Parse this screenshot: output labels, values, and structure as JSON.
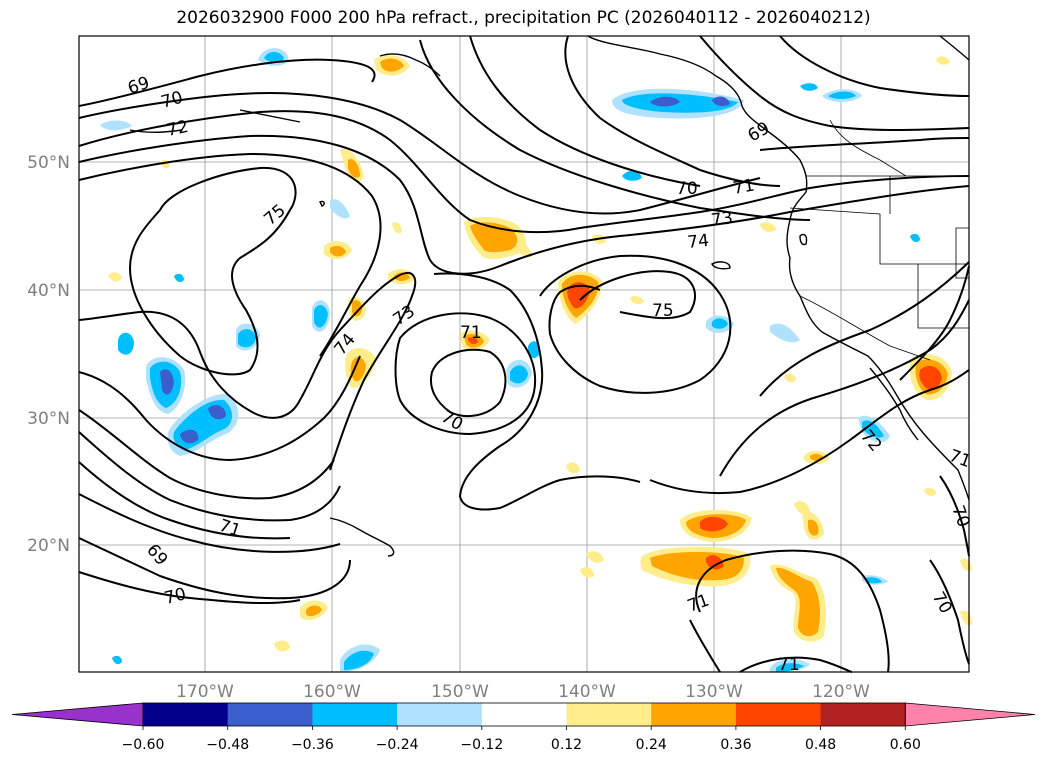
{
  "title": "2026032900 F000 200 hPa refract., precipitation PC (2026040112 - 2026040212)",
  "lat_labels": [
    "50°N",
    "40°N",
    "30°N",
    "20°N"
  ],
  "lon_labels": [
    "170°W",
    "160°W",
    "150°W",
    "140°W",
    "130°W",
    "120°W"
  ],
  "contour_labels": [
    "69",
    "70",
    "72",
    "75",
    "74",
    "73",
    "71",
    "70",
    "75",
    "70",
    "71",
    "73",
    "74",
    "69",
    "71",
    "69",
    "70",
    "71",
    "72",
    "71",
    "70",
    "71",
    "70"
  ],
  "colorbar": {
    "ticks": [
      "−0.60",
      "−0.48",
      "−0.36",
      "−0.24",
      "−0.12",
      "0.12",
      "0.24",
      "0.36",
      "0.48",
      "0.60"
    ],
    "colors": [
      "#9932cc",
      "#00008b",
      "#3a5fcd",
      "#00bfff",
      "#b0e2ff",
      "#ffffff",
      "#ffec8b",
      "#ffa500",
      "#ff4500",
      "#b22222",
      "#ff82ab"
    ]
  },
  "fill_colors": {
    "neg_light": "#b0e2ff",
    "neg_mid": "#00bfff",
    "neg_dark": "#3a5fcd",
    "pos_light": "#ffec8b",
    "pos_mid": "#ffa500",
    "pos_dark": "#ff4500"
  }
}
